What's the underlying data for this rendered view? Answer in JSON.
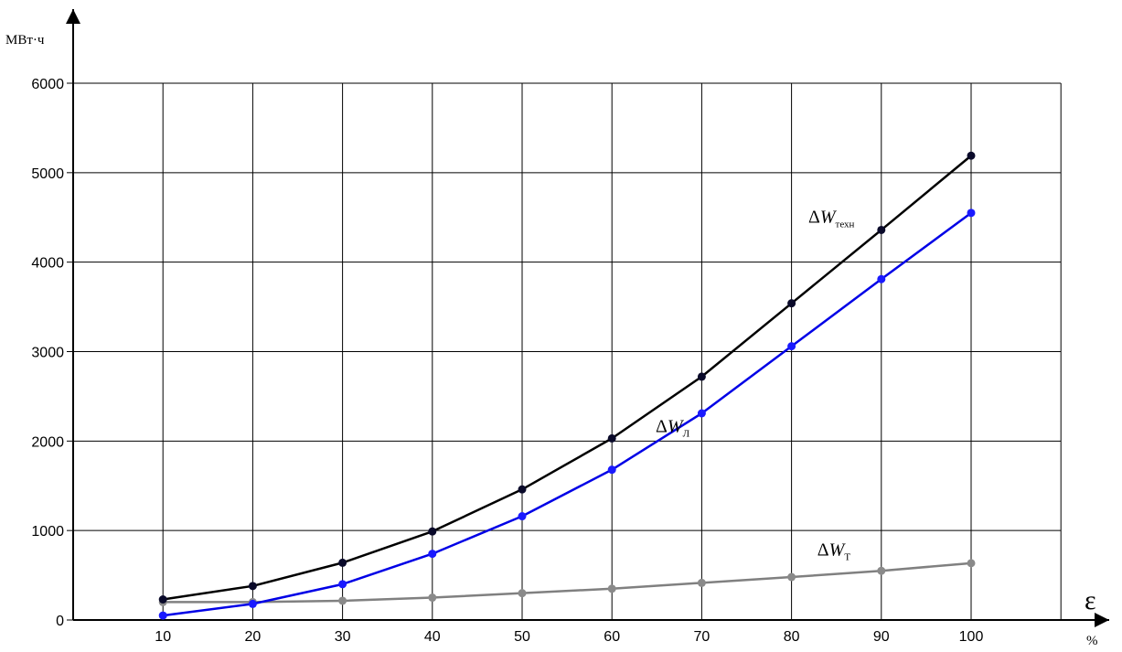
{
  "chart_data": {
    "type": "line",
    "title": "",
    "xlabel": "ε",
    "x_unit": "%",
    "ylabel": "МВт·ч",
    "x": [
      10,
      20,
      30,
      40,
      50,
      60,
      70,
      80,
      90,
      100
    ],
    "xlim": [
      0,
      110
    ],
    "ylim": [
      0,
      6000
    ],
    "y_ticks": [
      0,
      1000,
      2000,
      3000,
      4000,
      5000,
      6000
    ],
    "grid": true,
    "legend": "none",
    "series": [
      {
        "key": "tech",
        "name_delta": "Δ",
        "name_main": "W",
        "name_sub": "техн",
        "color": "#000000",
        "marker_color": "#0a0a2a",
        "values": [
          230,
          380,
          640,
          990,
          1460,
          2030,
          2720,
          3540,
          4360,
          5190
        ],
        "label_anchor": [
          89,
          4440
        ]
      },
      {
        "key": "line",
        "name_delta": "Δ",
        "name_main": "W",
        "name_sub": "Л",
        "color": "#0000e6",
        "marker_color": "#1a1aff",
        "values": [
          50,
          180,
          400,
          740,
          1160,
          1680,
          2310,
          3060,
          3810,
          4550
        ],
        "label_anchor": [
          72,
          2100
        ]
      },
      {
        "key": "transformer",
        "name_delta": "Δ",
        "name_main": "W",
        "name_sub": "Т",
        "color": "#808080",
        "marker_color": "#8a8a8a",
        "values": [
          200,
          200,
          215,
          250,
          300,
          350,
          415,
          480,
          550,
          635
        ],
        "label_anchor": [
          90,
          720
        ]
      }
    ]
  }
}
